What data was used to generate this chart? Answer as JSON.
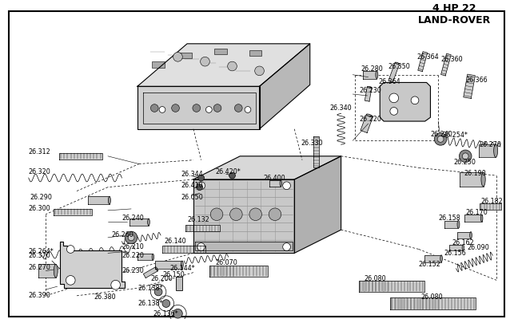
{
  "bg": "#ffffff",
  "fg": "#000000",
  "fig_w": 6.43,
  "fig_h": 4.0,
  "dpi": 100,
  "watermark": "4 HP 22\nLAND-ROVER",
  "wx": 0.895,
  "wy": 0.055
}
